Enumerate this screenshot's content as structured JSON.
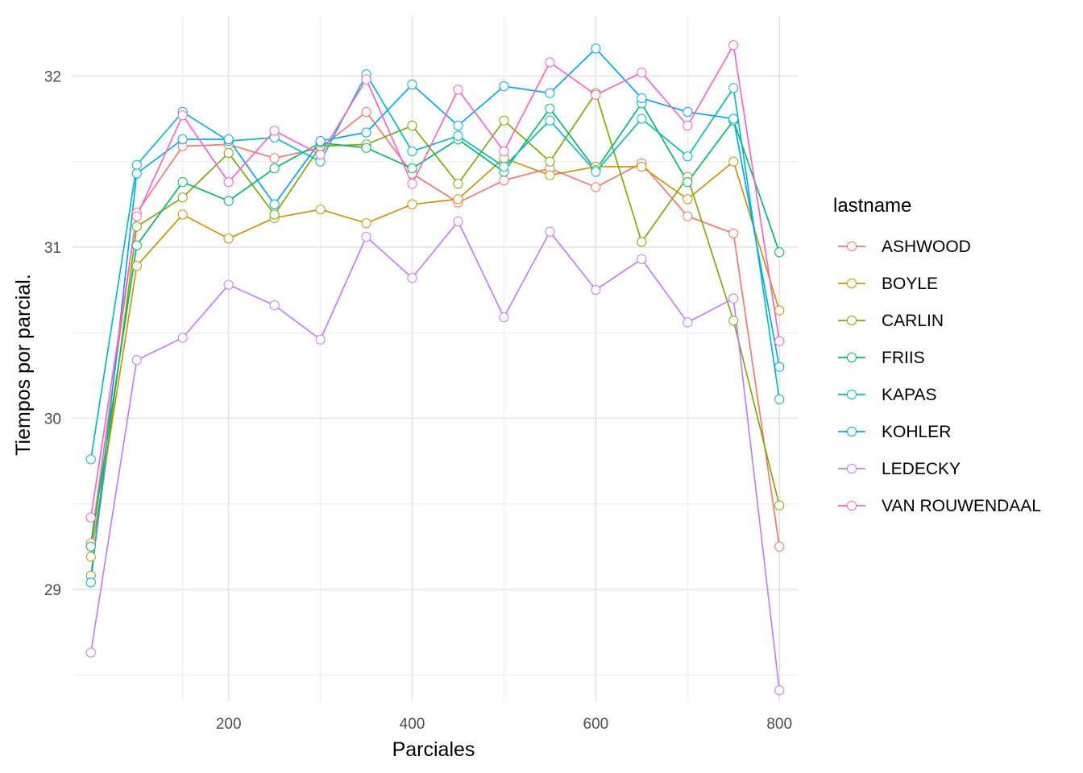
{
  "chart_data": {
    "type": "line",
    "title": "",
    "xlabel": "Parciales",
    "ylabel": "Tiempos por parcial.",
    "xlim": [
      30,
      820
    ],
    "ylim": [
      28.35,
      32.35
    ],
    "x_ticks": [
      200,
      400,
      600,
      800
    ],
    "y_ticks": [
      29,
      30,
      31,
      32
    ],
    "grid": true,
    "legend_title": "lastname",
    "legend_position": "right",
    "x": [
      50,
      100,
      150,
      200,
      250,
      300,
      350,
      400,
      450,
      500,
      550,
      600,
      650,
      700,
      750,
      800
    ],
    "series": [
      {
        "name": "ASHWOOD",
        "color": "#F8766D",
        "values": [
          29.27,
          31.2,
          31.59,
          31.6,
          31.52,
          31.58,
          31.79,
          31.43,
          31.26,
          31.39,
          31.46,
          31.35,
          31.49,
          31.18,
          31.08,
          29.25
        ]
      },
      {
        "name": "BOYLE",
        "color": "#CD9600",
        "values": [
          29.19,
          30.89,
          31.19,
          31.05,
          31.17,
          31.22,
          31.14,
          31.25,
          31.28,
          31.52,
          31.42,
          31.47,
          31.47,
          31.28,
          31.5,
          30.63
        ]
      },
      {
        "name": "CARLIN",
        "color": "#7CAE00",
        "values": [
          29.08,
          31.12,
          31.29,
          31.55,
          31.19,
          31.59,
          31.6,
          31.71,
          31.37,
          31.74,
          31.5,
          31.9,
          31.03,
          31.41,
          30.57,
          29.49
        ]
      },
      {
        "name": "FRIIS",
        "color": "#00BE67",
        "values": [
          29.25,
          31.01,
          31.38,
          31.27,
          31.46,
          31.61,
          31.58,
          31.46,
          31.63,
          31.44,
          31.81,
          31.45,
          31.84,
          31.38,
          31.74,
          30.97
        ]
      },
      {
        "name": "KAPAS",
        "color": "#00BFC4",
        "values": [
          29.76,
          31.48,
          31.79,
          31.62,
          31.64,
          31.5,
          32.01,
          31.56,
          31.65,
          31.47,
          31.74,
          31.44,
          31.75,
          31.53,
          31.93,
          30.11
        ]
      },
      {
        "name": "KOHLER",
        "color": "#00A9FF",
        "values": [
          29.04,
          31.43,
          31.63,
          31.63,
          31.25,
          31.62,
          31.67,
          31.95,
          31.71,
          31.94,
          31.9,
          32.16,
          31.87,
          31.79,
          31.75,
          30.3
        ]
      },
      {
        "name": "LEDECKY",
        "color": "#C77CFF",
        "values": [
          28.63,
          30.34,
          30.47,
          30.78,
          30.66,
          30.46,
          31.06,
          30.82,
          31.15,
          30.59,
          31.09,
          30.75,
          30.93,
          30.56,
          30.7,
          28.41
        ]
      },
      {
        "name": "VAN ROUWENDAAL",
        "color": "#FF61CC",
        "values": [
          29.42,
          31.18,
          31.77,
          31.38,
          31.68,
          31.54,
          31.98,
          31.37,
          31.92,
          31.56,
          32.08,
          31.89,
          32.02,
          31.71,
          32.18,
          30.45
        ]
      }
    ]
  }
}
